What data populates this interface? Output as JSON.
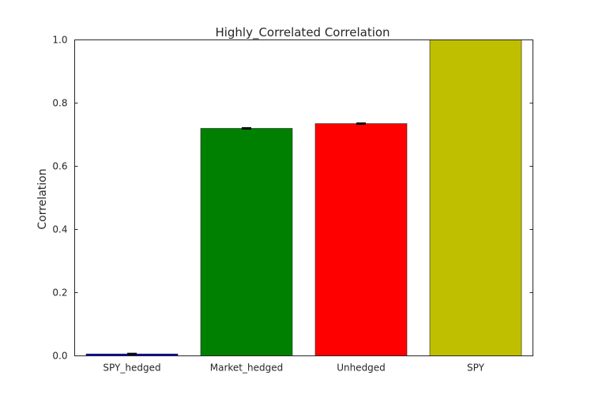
{
  "chart_data": {
    "type": "bar",
    "title": "Highly_Correlated Correlation",
    "xlabel": "",
    "ylabel": "Correlation",
    "ylim": [
      0.0,
      1.0
    ],
    "yticks": [
      "0.0",
      "0.2",
      "0.4",
      "0.6",
      "0.8",
      "1.0"
    ],
    "categories": [
      "SPY_hedged",
      "Market_hedged",
      "Unhedged",
      "SPY"
    ],
    "values": [
      0.006,
      0.72,
      0.735,
      1.0
    ],
    "errors": [
      0.002,
      0.002,
      0.002,
      0.0
    ],
    "colors": [
      "#0000c0",
      "#008000",
      "#ff0000",
      "#bfbf00"
    ],
    "grid": false,
    "legend": false
  }
}
